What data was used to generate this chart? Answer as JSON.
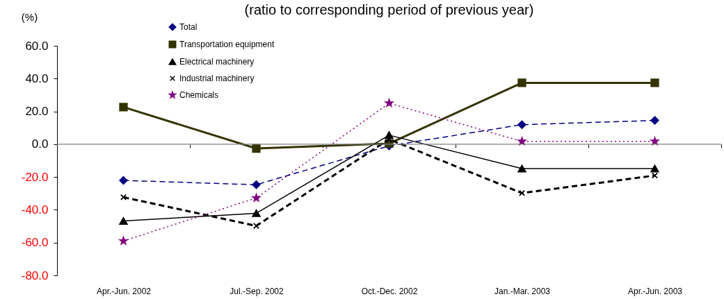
{
  "chart_data": {
    "type": "line",
    "title": "(ratio to corresponding period of previous year)",
    "ylabel": "(%)",
    "categories": [
      "Apr.-Jun. 2002",
      "Jul.-Sep. 2002",
      "Oct.-Dec. 2002",
      "Jan.-Mar. 2003",
      "Apr.-Jun. 2003"
    ],
    "series": [
      {
        "name": "Total",
        "color": "#000080",
        "marker": "diamond",
        "line_style": "dashed",
        "values": [
          -22.1,
          -24.7,
          -1.0,
          11.9,
          14.5
        ]
      },
      {
        "name": "Transportation equipment",
        "color": "#333300",
        "marker": "square",
        "line_style": "solid",
        "values": [
          22.6,
          -2.6,
          0.4,
          37.4,
          37.4
        ]
      },
      {
        "name": "Electrical machinery",
        "color": "#000000",
        "marker": "triangle",
        "line_style": "solid",
        "values": [
          -46.8,
          -42.1,
          5.5,
          -14.9,
          -14.9
        ]
      },
      {
        "name": "Industrial machinery",
        "color": "#000000",
        "marker": "cross",
        "line_style": "dashed",
        "values": [
          -32.3,
          -49.8,
          3.0,
          -29.8,
          -19.1
        ]
      },
      {
        "name": "Chemicals",
        "color": "#800080",
        "marker": "star",
        "line_style": "dotted",
        "values": [
          -59.0,
          -32.8,
          25.0,
          1.7,
          1.7
        ]
      }
    ],
    "ylim": [
      -80,
      60
    ],
    "yticks": [
      {
        "value": -80,
        "label": "-80.0"
      },
      {
        "value": -60,
        "label": "-60.0"
      },
      {
        "value": -40,
        "label": "-40.0"
      },
      {
        "value": -20,
        "label": "-20.0"
      },
      {
        "value": 0,
        "label": "0.0"
      },
      {
        "value": 20,
        "label": "20.0"
      },
      {
        "value": 40,
        "label": "40.0"
      },
      {
        "value": 60,
        "label": "60.0"
      }
    ],
    "ref_lines": [
      {
        "axis": "y",
        "value": 0,
        "color": "#808080"
      }
    ],
    "legend": "top left"
  }
}
